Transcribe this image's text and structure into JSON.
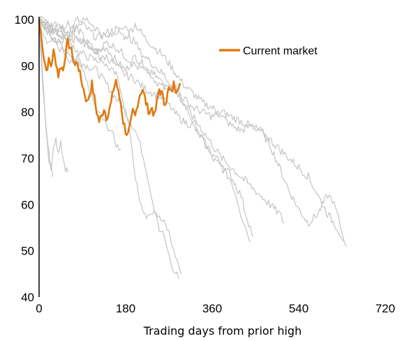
{
  "chart_data": {
    "type": "line",
    "title": "",
    "xlabel": "Trading days from prior high",
    "ylabel": "",
    "xlim": [
      0,
      720
    ],
    "ylim": [
      40,
      100
    ],
    "x_ticks": [
      "0",
      "180",
      "360",
      "540",
      "720"
    ],
    "y_ticks": [
      "100",
      "90",
      "80",
      "70",
      "60",
      "50",
      "40"
    ],
    "grid": false,
    "legend": {
      "position": "top-right",
      "entries": [
        "Current market"
      ]
    },
    "colors": {
      "current": "#e07a10",
      "historical": "#c4c4c4",
      "axis": "#000000"
    },
    "series": [
      {
        "name": "Current market",
        "highlight": true,
        "points": [
          [
            0,
            100
          ],
          [
            5,
            96
          ],
          [
            10,
            92
          ],
          [
            15,
            89
          ],
          [
            20,
            91
          ],
          [
            25,
            90
          ],
          [
            30,
            93
          ],
          [
            35,
            91
          ],
          [
            40,
            88
          ],
          [
            45,
            90
          ],
          [
            50,
            89
          ],
          [
            55,
            93
          ],
          [
            60,
            95
          ],
          [
            65,
            94
          ],
          [
            70,
            92
          ],
          [
            75,
            90
          ],
          [
            80,
            91
          ],
          [
            85,
            88
          ],
          [
            90,
            86
          ],
          [
            95,
            84
          ],
          [
            100,
            82
          ],
          [
            105,
            84
          ],
          [
            110,
            86
          ],
          [
            115,
            83
          ],
          [
            120,
            80
          ],
          [
            125,
            78
          ],
          [
            130,
            79
          ],
          [
            135,
            81
          ],
          [
            140,
            79
          ],
          [
            145,
            80
          ],
          [
            150,
            82
          ],
          [
            155,
            85
          ],
          [
            160,
            87
          ],
          [
            165,
            84
          ],
          [
            170,
            82
          ],
          [
            175,
            78
          ],
          [
            180,
            76
          ],
          [
            185,
            75
          ],
          [
            190,
            77
          ],
          [
            195,
            80
          ],
          [
            200,
            79
          ],
          [
            205,
            82
          ],
          [
            210,
            84
          ],
          [
            215,
            85
          ],
          [
            220,
            83
          ],
          [
            225,
            81
          ],
          [
            230,
            80
          ],
          [
            235,
            81
          ],
          [
            240,
            79
          ],
          [
            245,
            82
          ],
          [
            250,
            85
          ],
          [
            255,
            84
          ],
          [
            260,
            82
          ],
          [
            265,
            83
          ],
          [
            270,
            85
          ],
          [
            275,
            84
          ],
          [
            280,
            86
          ],
          [
            285,
            85
          ],
          [
            290,
            86
          ],
          [
            295,
            86
          ]
        ]
      },
      {
        "points": [
          [
            0,
            100
          ],
          [
            5,
            92
          ],
          [
            10,
            84
          ],
          [
            15,
            76
          ],
          [
            20,
            70
          ],
          [
            25,
            68
          ],
          [
            30,
            72
          ],
          [
            35,
            75
          ],
          [
            40,
            71
          ],
          [
            45,
            74
          ],
          [
            50,
            70
          ],
          [
            55,
            68
          ],
          [
            60,
            67
          ]
        ]
      },
      {
        "points": [
          [
            0,
            100
          ],
          [
            5,
            90
          ],
          [
            10,
            82
          ],
          [
            15,
            76
          ],
          [
            20,
            72
          ],
          [
            25,
            68
          ],
          [
            28,
            66
          ]
        ]
      },
      {
        "points": [
          [
            0,
            100
          ],
          [
            10,
            97
          ],
          [
            20,
            95
          ],
          [
            30,
            96
          ],
          [
            40,
            94
          ],
          [
            50,
            93
          ],
          [
            60,
            91
          ],
          [
            70,
            90
          ],
          [
            80,
            92
          ],
          [
            90,
            89
          ],
          [
            100,
            86
          ],
          [
            110,
            83
          ],
          [
            120,
            80
          ],
          [
            130,
            79
          ],
          [
            140,
            77
          ],
          [
            150,
            76
          ],
          [
            160,
            73
          ],
          [
            170,
            72
          ]
        ]
      },
      {
        "points": [
          [
            0,
            100
          ],
          [
            20,
            98
          ],
          [
            40,
            97
          ],
          [
            60,
            99
          ],
          [
            80,
            96
          ],
          [
            100,
            95
          ],
          [
            120,
            93
          ],
          [
            140,
            90
          ],
          [
            160,
            88
          ],
          [
            170,
            85
          ],
          [
            180,
            80
          ],
          [
            190,
            75
          ],
          [
            200,
            66
          ],
          [
            210,
            60
          ],
          [
            220,
            58
          ],
          [
            230,
            57
          ],
          [
            240,
            59
          ],
          [
            250,
            55
          ],
          [
            260,
            53
          ],
          [
            270,
            49
          ],
          [
            280,
            46
          ],
          [
            290,
            44
          ]
        ]
      },
      {
        "points": [
          [
            0,
            100
          ],
          [
            20,
            97
          ],
          [
            40,
            95
          ],
          [
            60,
            93
          ],
          [
            80,
            91
          ],
          [
            100,
            90
          ],
          [
            120,
            89
          ],
          [
            140,
            86
          ],
          [
            160,
            83
          ],
          [
            180,
            80
          ],
          [
            190,
            78
          ],
          [
            200,
            76
          ],
          [
            210,
            73
          ],
          [
            220,
            69
          ],
          [
            230,
            64
          ],
          [
            240,
            59
          ],
          [
            250,
            57
          ],
          [
            260,
            56
          ],
          [
            270,
            54
          ],
          [
            280,
            50
          ],
          [
            290,
            47
          ],
          [
            295,
            45
          ]
        ]
      },
      {
        "points": [
          [
            0,
            100
          ],
          [
            20,
            99
          ],
          [
            40,
            97
          ],
          [
            60,
            96
          ],
          [
            80,
            98
          ],
          [
            100,
            95
          ],
          [
            120,
            93
          ],
          [
            140,
            94
          ],
          [
            160,
            91
          ],
          [
            180,
            89
          ],
          [
            200,
            92
          ],
          [
            220,
            90
          ],
          [
            240,
            87
          ],
          [
            260,
            85
          ],
          [
            280,
            86
          ],
          [
            300,
            82
          ],
          [
            320,
            78
          ],
          [
            340,
            74
          ],
          [
            360,
            70
          ],
          [
            380,
            68
          ],
          [
            400,
            65
          ],
          [
            410,
            62
          ],
          [
            420,
            58
          ],
          [
            430,
            55
          ],
          [
            440,
            52
          ]
        ]
      },
      {
        "points": [
          [
            0,
            100
          ],
          [
            20,
            98
          ],
          [
            40,
            99
          ],
          [
            60,
            97
          ],
          [
            80,
            100
          ],
          [
            100,
            98
          ],
          [
            120,
            96
          ],
          [
            140,
            97
          ],
          [
            160,
            98
          ],
          [
            180,
            96
          ],
          [
            200,
            99
          ],
          [
            220,
            96
          ],
          [
            240,
            94
          ],
          [
            260,
            92
          ],
          [
            280,
            89
          ],
          [
            300,
            86
          ],
          [
            320,
            84
          ],
          [
            340,
            82
          ],
          [
            360,
            81
          ],
          [
            380,
            79
          ],
          [
            400,
            77
          ],
          [
            420,
            76
          ],
          [
            440,
            77
          ],
          [
            460,
            76
          ],
          [
            480,
            73
          ],
          [
            500,
            68
          ],
          [
            520,
            63
          ],
          [
            540,
            59
          ],
          [
            560,
            56
          ],
          [
            580,
            58
          ],
          [
            600,
            62
          ],
          [
            610,
            61
          ],
          [
            620,
            58
          ],
          [
            630,
            54
          ],
          [
            640,
            51
          ]
        ]
      },
      {
        "points": [
          [
            0,
            100
          ],
          [
            20,
            97
          ],
          [
            40,
            95
          ],
          [
            60,
            96
          ],
          [
            80,
            93
          ],
          [
            100,
            92
          ],
          [
            120,
            91
          ],
          [
            140,
            92
          ],
          [
            160,
            90
          ],
          [
            180,
            88
          ],
          [
            200,
            87
          ],
          [
            220,
            85
          ],
          [
            240,
            84
          ],
          [
            260,
            83
          ],
          [
            280,
            80
          ],
          [
            300,
            78
          ],
          [
            320,
            77
          ],
          [
            340,
            74
          ],
          [
            360,
            71
          ],
          [
            380,
            69
          ],
          [
            400,
            66
          ],
          [
            420,
            62
          ],
          [
            430,
            58
          ],
          [
            440,
            55
          ],
          [
            445,
            53
          ]
        ]
      },
      {
        "points": [
          [
            0,
            100
          ],
          [
            20,
            98
          ],
          [
            40,
            97
          ],
          [
            60,
            95
          ],
          [
            80,
            96
          ],
          [
            100,
            94
          ],
          [
            120,
            93
          ],
          [
            140,
            95
          ],
          [
            160,
            94
          ],
          [
            180,
            92
          ],
          [
            200,
            90
          ],
          [
            220,
            89
          ],
          [
            240,
            88
          ],
          [
            260,
            86
          ],
          [
            280,
            85
          ],
          [
            300,
            83
          ],
          [
            320,
            81
          ],
          [
            340,
            80
          ],
          [
            360,
            79
          ],
          [
            380,
            80
          ],
          [
            400,
            79
          ],
          [
            420,
            78
          ],
          [
            440,
            77
          ],
          [
            460,
            76
          ],
          [
            480,
            74
          ],
          [
            500,
            72
          ],
          [
            520,
            70
          ],
          [
            540,
            68
          ],
          [
            560,
            66
          ],
          [
            580,
            62
          ],
          [
            600,
            58
          ],
          [
            620,
            55
          ],
          [
            635,
            52
          ]
        ]
      },
      {
        "points": [
          [
            0,
            100
          ],
          [
            20,
            99
          ],
          [
            40,
            98
          ],
          [
            60,
            97
          ],
          [
            80,
            99
          ],
          [
            100,
            100
          ],
          [
            120,
            98
          ],
          [
            140,
            96
          ],
          [
            160,
            97
          ],
          [
            170,
            99
          ],
          [
            180,
            98
          ],
          [
            190,
            96
          ],
          [
            200,
            95
          ],
          [
            210,
            93
          ],
          [
            220,
            92
          ],
          [
            240,
            90
          ],
          [
            260,
            88
          ],
          [
            280,
            85
          ],
          [
            300,
            82
          ],
          [
            320,
            79
          ],
          [
            340,
            76
          ],
          [
            360,
            73
          ],
          [
            380,
            70
          ],
          [
            400,
            68
          ],
          [
            420,
            66
          ],
          [
            440,
            64
          ],
          [
            460,
            62
          ],
          [
            480,
            60
          ],
          [
            500,
            58
          ],
          [
            510,
            56
          ]
        ]
      }
    ]
  }
}
